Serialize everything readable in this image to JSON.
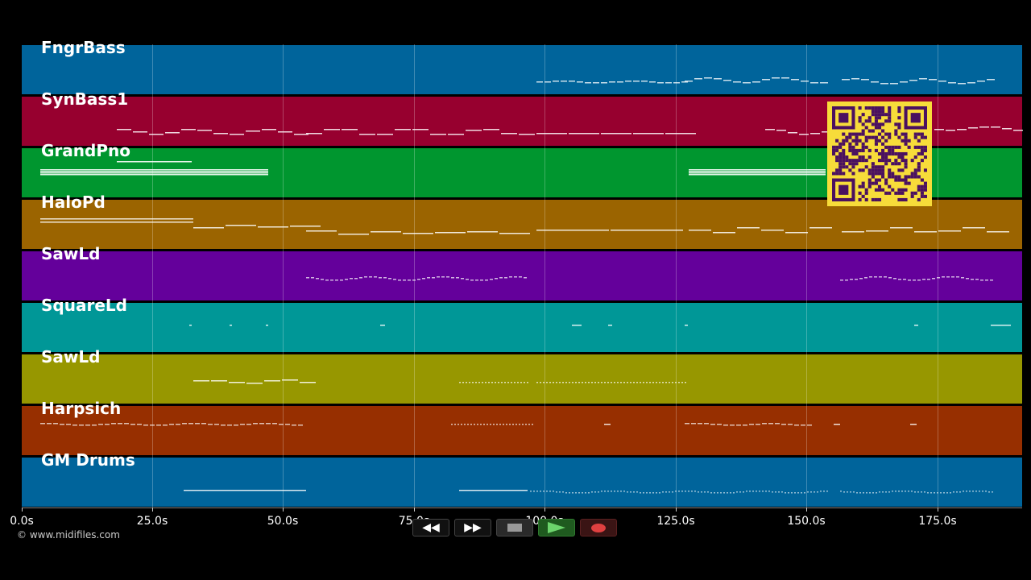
{
  "tracks": [
    {
      "name": "FngrBass",
      "color": "#00649b"
    },
    {
      "name": "SynBass1",
      "color": "#97002f"
    },
    {
      "name": "GrandPno",
      "color": "#00962f"
    },
    {
      "name": "HaloPd",
      "color": "#9b6400"
    },
    {
      "name": "SawLd",
      "color": "#64009b"
    },
    {
      "name": "SquareLd",
      "color": "#009797"
    },
    {
      "name": "SawLd",
      "color": "#979700"
    },
    {
      "name": "Harpsich",
      "color": "#972f00"
    },
    {
      "name": "GM Drums",
      "color": "#00649b"
    }
  ],
  "timeline": {
    "ticks": [
      "0.0s",
      "25.0s",
      "50.0s",
      "75.0s",
      "100.0s",
      "125.0s",
      "150.0s",
      "175.0s"
    ]
  },
  "copyright": "© www.midifiles.com",
  "transport": {
    "rewind_icon": "rewind-icon",
    "fastforward_icon": "fast-forward-icon",
    "stop_icon": "stop-icon",
    "play_icon": "play-icon",
    "record_icon": "record-icon",
    "rewind_label": "◀◀",
    "fastforward_label": "▶▶"
  },
  "qr": {
    "color_bg": "#f7dc3a",
    "color_fg": "#4a1060"
  }
}
